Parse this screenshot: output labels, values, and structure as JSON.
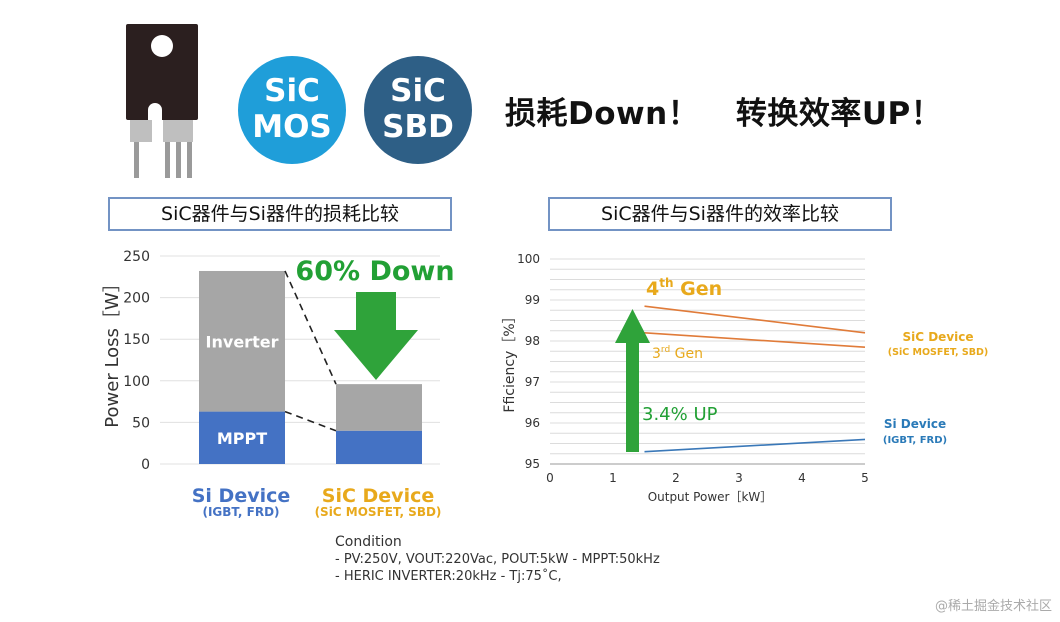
{
  "header": {
    "badge_mos": {
      "line1": "SiC",
      "line2": "MOS",
      "color": "#1f9ed9"
    },
    "badge_sbd": {
      "line1": "SiC",
      "line2": "SBD",
      "color": "#2e5f86"
    },
    "slogan_loss": "损耗Down！",
    "slogan_eff": "转换效率UP！"
  },
  "chart_data": [
    {
      "type": "bar",
      "title": "SiC器件与Si器件的损耗比较",
      "ylabel": "Power Loss［W］",
      "ylim": [
        0,
        250
      ],
      "yticks": [
        0,
        50,
        100,
        150,
        200,
        250
      ],
      "categories": [
        "Si Device",
        "SiC Device"
      ],
      "category_sub": [
        "(IGBT, FRD)",
        "(SiC MOSFET, SBD)"
      ],
      "category_colors": [
        "#4472c4",
        "#e8a91c"
      ],
      "stacked": true,
      "series": [
        {
          "name": "MPPT",
          "values": [
            63,
            40
          ],
          "color": "#4472c4"
        },
        {
          "name": "Inverter",
          "values": [
            169,
            56
          ],
          "color": "#a6a6a6"
        }
      ],
      "annotation": "60% Down",
      "annotation_color": "#22a035"
    },
    {
      "type": "line",
      "title": "SiC器件与Si器件的效率比较",
      "xlabel": "Output Power［kW］",
      "ylabel": "Fficiency［%］",
      "xlim": [
        0,
        5
      ],
      "ylim": [
        95,
        100
      ],
      "xticks": [
        0,
        1,
        2,
        3,
        4,
        5
      ],
      "yticks": [
        95,
        96,
        97,
        98,
        99,
        100
      ],
      "series": [
        {
          "label": "4th Gen",
          "x": [
            1.5,
            5
          ],
          "y": [
            98.85,
            98.2
          ],
          "color": "#e07b39"
        },
        {
          "label": "3rd Gen",
          "x": [
            1.5,
            5
          ],
          "y": [
            98.2,
            97.85
          ],
          "color": "#e07b39"
        },
        {
          "label": "",
          "x": [
            1.5,
            5
          ],
          "y": [
            95.3,
            95.6
          ],
          "color": "#3a78b8"
        }
      ],
      "gen4_text": {
        "main": "4",
        "sup": "th",
        "rest": " Gen"
      },
      "gen3_text": {
        "main": "3",
        "sup": "rd",
        "rest": " Gen"
      },
      "right_labels": [
        {
          "line1": "SiC Device",
          "line2": "(SiC MOSFET, SBD)",
          "color": "#e8a91c"
        },
        {
          "line1": "Si Device",
          "line2": "(IGBT, FRD)",
          "color": "#2a7ab8"
        }
      ],
      "annotation": "3.4% UP",
      "annotation_color": "#22a035"
    }
  ],
  "condition": {
    "title": "Condition",
    "line1": "- PV:250V, VOUT:220Vac, POUT:5kW    - MPPT:50kHz",
    "line2": "- HERIC INVERTER:20kHz    - Tj:75˚C,"
  },
  "watermark": "@稀土掘金技术社区"
}
